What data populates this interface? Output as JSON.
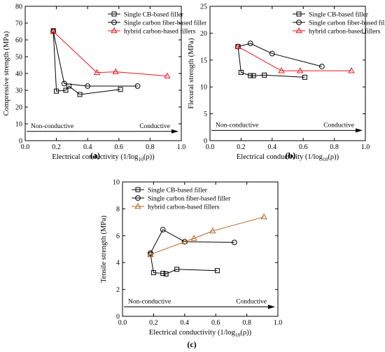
{
  "chart_data": [
    {
      "panel": "(a)",
      "type": "line",
      "ylabel": "Compressive strength (MPa)",
      "xlabel_prefix": "Electrical conductivity (1/log",
      "xlabel_sub": "10",
      "xlabel_suffix": "(ρ))",
      "xlim": [
        0.0,
        1.0
      ],
      "ylim": [
        0,
        80
      ],
      "xticks": [
        0.0,
        0.2,
        0.4,
        0.6,
        0.8,
        1.0
      ],
      "xtick_labels": [
        "0.0",
        "0.2",
        "0.4",
        "0.6",
        "0.8",
        "1.0"
      ],
      "yticks": [
        0,
        10,
        20,
        30,
        40,
        50,
        60,
        70,
        80
      ],
      "ytick_labels": [
        "0",
        "10",
        "20",
        "30",
        "40",
        "50",
        "60",
        "70",
        "80"
      ],
      "annotation_left": "Non-conductive",
      "annotation_right": "Conductive",
      "arrow_y": 5.5,
      "legend_position": "top-right",
      "series": [
        {
          "name": "Single CB-based filler",
          "marker": "square",
          "color": "#000000",
          "points": [
            [
              0.18,
              65.5
            ],
            [
              0.2,
              29.5
            ],
            [
              0.26,
              30.0
            ],
            [
              0.28,
              32.5
            ],
            [
              0.35,
              27.5
            ],
            [
              0.61,
              30.5
            ]
          ]
        },
        {
          "name": "Single carbon fiber-based filler",
          "marker": "circle",
          "color": "#000000",
          "points": [
            [
              0.18,
              65.0
            ],
            [
              0.25,
              34.0
            ],
            [
              0.4,
              32.5
            ],
            [
              0.72,
              32.5
            ]
          ]
        },
        {
          "name": "hybrid carbon-based fillers",
          "marker": "triangle",
          "color": "#e8141a",
          "points": [
            [
              0.18,
              65.0
            ],
            [
              0.46,
              40.5
            ],
            [
              0.58,
              41.0
            ],
            [
              0.91,
              38.5
            ]
          ]
        }
      ]
    },
    {
      "panel": "(b)",
      "type": "line",
      "ylabel": "Flexural strength (MPa)",
      "xlabel_prefix": "Electrical conductivity (1/log",
      "xlabel_sub": "10",
      "xlabel_suffix": "(ρ))",
      "xlim": [
        0.0,
        1.0
      ],
      "ylim": [
        0,
        25
      ],
      "xticks": [
        0.0,
        0.2,
        0.4,
        0.6,
        0.8,
        1.0
      ],
      "xtick_labels": [
        "0.0",
        "0.2",
        "0.4",
        "0.6",
        "0.8",
        "1.0"
      ],
      "yticks": [
        0,
        5,
        10,
        15,
        20,
        25
      ],
      "ytick_labels": [
        "0",
        "5",
        "10",
        "15",
        "20",
        "25"
      ],
      "annotation_left": "Non-conductive",
      "annotation_right": "Conductive",
      "arrow_y": 1.9,
      "legend_position": "top-right",
      "series": [
        {
          "name": "Single CB-based filler",
          "marker": "square",
          "color": "#000000",
          "points": [
            [
              0.18,
              17.5
            ],
            [
              0.2,
              12.7
            ],
            [
              0.26,
              12.1
            ],
            [
              0.28,
              12.1
            ],
            [
              0.35,
              12.2
            ],
            [
              0.61,
              11.8
            ]
          ]
        },
        {
          "name": "Single carbon fiber-based filler",
          "marker": "circle",
          "color": "#000000",
          "points": [
            [
              0.18,
              17.5
            ],
            [
              0.26,
              18.1
            ],
            [
              0.4,
              16.2
            ],
            [
              0.72,
              13.8
            ]
          ]
        },
        {
          "name": "hybrid carbon-based fillers",
          "marker": "triangle",
          "color": "#e8141a",
          "points": [
            [
              0.18,
              17.5
            ],
            [
              0.46,
              13.0
            ],
            [
              0.58,
              13.0
            ],
            [
              0.91,
              13.0
            ]
          ]
        }
      ]
    },
    {
      "panel": "(c)",
      "type": "line",
      "ylabel": "Tensile strength (MPa)",
      "xlabel_prefix": "Electrical conductivity (1/log",
      "xlabel_sub": "10",
      "xlabel_suffix": "(ρ))",
      "xlim": [
        0.0,
        1.0
      ],
      "ylim": [
        0,
        10
      ],
      "xticks": [
        0.0,
        0.2,
        0.4,
        0.6,
        0.8,
        1.0
      ],
      "xtick_labels": [
        "0.0",
        "0.2",
        "0.4",
        "0.6",
        "0.8",
        "1.0"
      ],
      "yticks": [
        0,
        2,
        4,
        6,
        8,
        10
      ],
      "ytick_labels": [
        "0",
        "2",
        "4",
        "6",
        "8",
        "10"
      ],
      "annotation_left": "Non-conductive",
      "annotation_right": "Conductive",
      "arrow_y": 0.7,
      "legend_position": "top-left",
      "series": [
        {
          "name": "Single CB-based filler",
          "marker": "square",
          "color": "#000000",
          "points": [
            [
              0.18,
              4.6
            ],
            [
              0.2,
              3.25
            ],
            [
              0.26,
              3.2
            ],
            [
              0.28,
              3.15
            ],
            [
              0.35,
              3.5
            ],
            [
              0.61,
              3.4
            ]
          ]
        },
        {
          "name": "Single carbon fiber-based filler",
          "marker": "circle",
          "color": "#000000",
          "points": [
            [
              0.18,
              4.7
            ],
            [
              0.26,
              6.45
            ],
            [
              0.4,
              5.55
            ],
            [
              0.72,
              5.5
            ]
          ]
        },
        {
          "name": "hybrid carbon-based fillers",
          "marker": "triangle",
          "color": "#b5651d",
          "points": [
            [
              0.18,
              4.6
            ],
            [
              0.4,
              5.55
            ],
            [
              0.46,
              5.8
            ],
            [
              0.58,
              6.35
            ],
            [
              0.91,
              7.4
            ]
          ]
        }
      ]
    }
  ]
}
